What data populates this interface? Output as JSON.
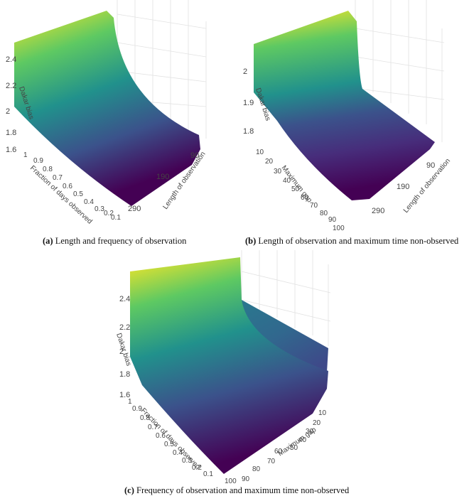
{
  "chart_data": [
    {
      "type": "surface3d",
      "tag": "(a)",
      "caption": "Length and frequency of observation",
      "x_axis": {
        "label": "Length of observation",
        "ticks": [
          "90",
          "190",
          "290"
        ]
      },
      "y_axis": {
        "label": "Fraction of days observed",
        "ticks": [
          "1",
          "0.9",
          "0.8",
          "0.7",
          "0.6",
          "0.5",
          "0.4",
          "0.3",
          "0.2",
          "0.1"
        ]
      },
      "z_axis": {
        "label": "Dakar bias",
        "ticks": [
          "1.6",
          "1.8",
          "2",
          "2.2",
          "2.4"
        ],
        "range": [
          1.6,
          2.5
        ]
      },
      "colorscale": [
        "#440154",
        "#3b528b",
        "#21918c",
        "#5ec962",
        "#fde725"
      ]
    },
    {
      "type": "surface3d",
      "tag": "(b)",
      "caption": "Length of observation and maximum time non-observed",
      "x_axis": {
        "label": "Length of observation",
        "ticks": [
          "90",
          "190",
          "290"
        ]
      },
      "y_axis": {
        "label": "Maximum gap",
        "ticks": [
          "10",
          "20",
          "30",
          "40",
          "50",
          "60",
          "70",
          "80",
          "90",
          "100"
        ]
      },
      "z_axis": {
        "label": "Dakar bias",
        "ticks": [
          "1.8",
          "1.9",
          "2"
        ],
        "range": [
          1.75,
          2.07
        ]
      },
      "colorscale": [
        "#440154",
        "#3b528b",
        "#21918c",
        "#5ec962",
        "#fde725"
      ]
    },
    {
      "type": "surface3d",
      "tag": "(c)",
      "caption": "Frequency of observation and maximum time non-observed",
      "x_axis": {
        "label": "Maximum gap",
        "ticks": [
          "10",
          "20",
          "30",
          "40",
          "50",
          "60",
          "70",
          "80",
          "90",
          "100"
        ]
      },
      "y_axis": {
        "label": "Fraction of days observed",
        "ticks": [
          "1",
          "0.9",
          "0.8",
          "0.7",
          "0.6",
          "0.5",
          "0.4",
          "0.3",
          "0.2",
          "0.1"
        ]
      },
      "z_axis": {
        "label": "Dakar bias",
        "ticks": [
          "1.6",
          "1.8",
          "2",
          "2.2",
          "2.4"
        ],
        "range": [
          1.6,
          2.5
        ]
      },
      "colorscale": [
        "#440154",
        "#3b528b",
        "#21918c",
        "#5ec962",
        "#fde725"
      ]
    }
  ]
}
